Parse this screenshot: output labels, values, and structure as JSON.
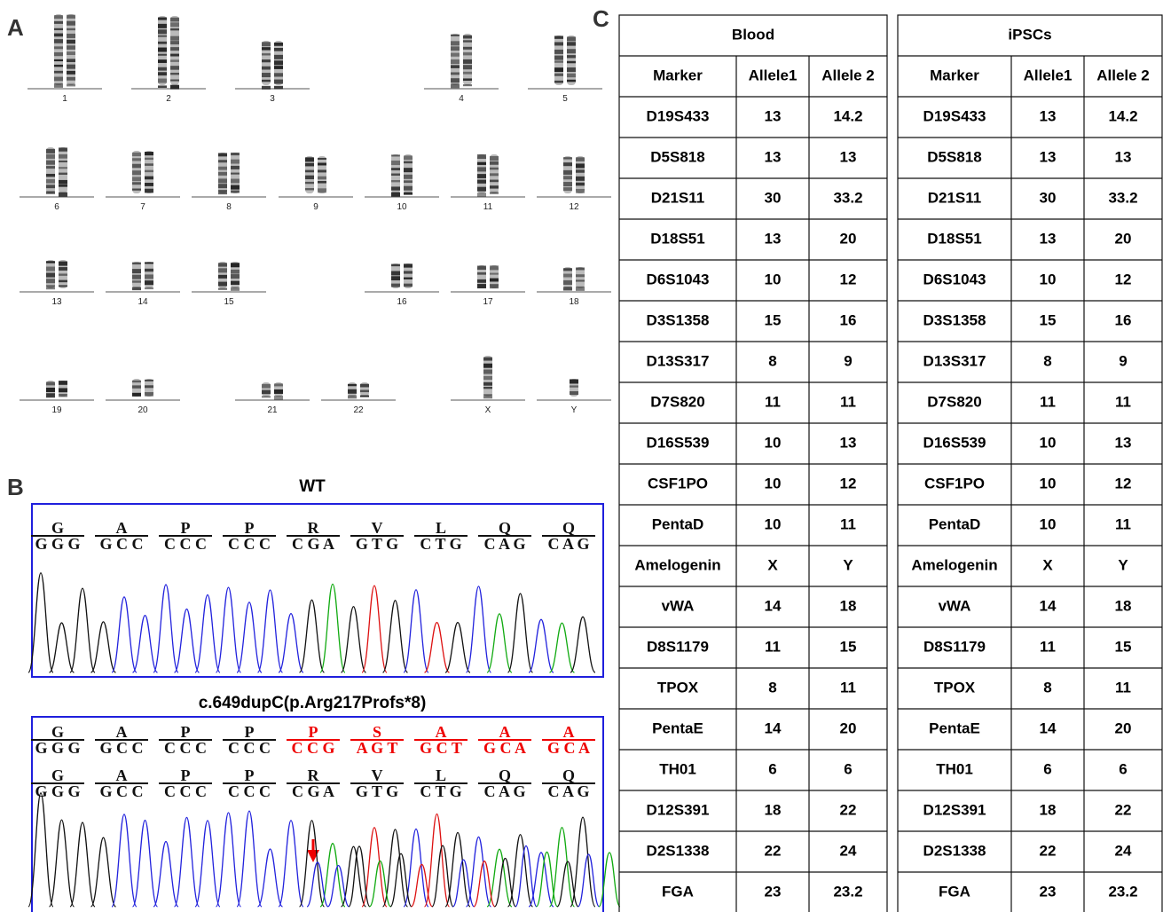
{
  "panels": {
    "a": "A",
    "b": "B",
    "c": "C"
  },
  "karyotype": {
    "rows": [
      [
        "1",
        "2",
        "3",
        "4",
        "5"
      ],
      [
        "6",
        "7",
        "8",
        "9",
        "10",
        "11",
        "12"
      ],
      [
        "13",
        "14",
        "15",
        "16",
        "17",
        "18"
      ],
      [
        "19",
        "20",
        "21",
        "22",
        "X",
        "Y"
      ]
    ]
  },
  "sequencing": {
    "wt": {
      "title": "WT",
      "codons": [
        {
          "aa": "G",
          "bases": "G G G"
        },
        {
          "aa": "A",
          "bases": "G C C"
        },
        {
          "aa": "P",
          "bases": "C C C"
        },
        {
          "aa": "P",
          "bases": "C C C"
        },
        {
          "aa": "R",
          "bases": "C G A"
        },
        {
          "aa": "V",
          "bases": "G T G"
        },
        {
          "aa": "L",
          "bases": "C T G"
        },
        {
          "aa": "Q",
          "bases": "C A G"
        },
        {
          "aa": "Q",
          "bases": "C A G"
        }
      ]
    },
    "mutant": {
      "title": "c.649dupC(p.Arg217Profs*8)",
      "rows": [
        [
          {
            "aa": "G",
            "bases": "G G G"
          },
          {
            "aa": "A",
            "bases": "G C C"
          },
          {
            "aa": "P",
            "bases": "C C C"
          },
          {
            "aa": "P",
            "bases": "C C C"
          },
          {
            "aa": "P",
            "bases": "C C G"
          },
          {
            "aa": "S",
            "bases": "A G T"
          },
          {
            "aa": "A",
            "bases": "G C T"
          },
          {
            "aa": "A",
            "bases": "G C A"
          },
          {
            "aa": "A",
            "bases": "G C A"
          }
        ],
        [
          {
            "aa": "G",
            "bases": "G G G"
          },
          {
            "aa": "A",
            "bases": "G C C"
          },
          {
            "aa": "P",
            "bases": "C C C"
          },
          {
            "aa": "P",
            "bases": "C C C"
          },
          {
            "aa": "R",
            "bases": "C G A"
          },
          {
            "aa": "V",
            "bases": "G T G"
          },
          {
            "aa": "L",
            "bases": "C T G"
          },
          {
            "aa": "Q",
            "bases": "C A G"
          },
          {
            "aa": "Q",
            "bases": "C A G"
          }
        ]
      ]
    }
  },
  "str_table": {
    "blood": {
      "title": "Blood",
      "headers": [
        "Marker",
        "Allele1",
        "Allele 2"
      ],
      "rows": [
        [
          "D19S433",
          "13",
          "14.2"
        ],
        [
          "D5S818",
          "13",
          "13"
        ],
        [
          "D21S11",
          "30",
          "33.2"
        ],
        [
          "D18S51",
          "13",
          "20"
        ],
        [
          "D6S1043",
          "10",
          "12"
        ],
        [
          "D3S1358",
          "15",
          "16"
        ],
        [
          "D13S317",
          "8",
          "9"
        ],
        [
          "D7S820",
          "11",
          "11"
        ],
        [
          "D16S539",
          "10",
          "13"
        ],
        [
          "CSF1PO",
          "10",
          "12"
        ],
        [
          "PentaD",
          "10",
          "11"
        ],
        [
          "Amelogenin",
          "X",
          "Y"
        ],
        [
          "vWA",
          "14",
          "18"
        ],
        [
          "D8S1179",
          "11",
          "15"
        ],
        [
          "TPOX",
          "8",
          "11"
        ],
        [
          "PentaE",
          "14",
          "20"
        ],
        [
          "TH01",
          "6",
          "6"
        ],
        [
          "D12S391",
          "18",
          "22"
        ],
        [
          "D2S1338",
          "22",
          "24"
        ],
        [
          "FGA",
          "23",
          "23.2"
        ]
      ]
    },
    "ipscs": {
      "title": "iPSCs",
      "headers": [
        "Marker",
        "Allele1",
        "Allele 2"
      ],
      "rows": [
        [
          "D19S433",
          "13",
          "14.2"
        ],
        [
          "D5S818",
          "13",
          "13"
        ],
        [
          "D21S11",
          "30",
          "33.2"
        ],
        [
          "D18S51",
          "13",
          "20"
        ],
        [
          "D6S1043",
          "10",
          "12"
        ],
        [
          "D3S1358",
          "15",
          "16"
        ],
        [
          "D13S317",
          "8",
          "9"
        ],
        [
          "D7S820",
          "11",
          "11"
        ],
        [
          "D16S539",
          "10",
          "13"
        ],
        [
          "CSF1PO",
          "10",
          "12"
        ],
        [
          "PentaD",
          "10",
          "11"
        ],
        [
          "Amelogenin",
          "X",
          "Y"
        ],
        [
          "vWA",
          "14",
          "18"
        ],
        [
          "D8S1179",
          "11",
          "15"
        ],
        [
          "TPOX",
          "8",
          "11"
        ],
        [
          "PentaE",
          "14",
          "20"
        ],
        [
          "TH01",
          "6",
          "6"
        ],
        [
          "D12S391",
          "18",
          "22"
        ],
        [
          "D2S1338",
          "22",
          "24"
        ],
        [
          "FGA",
          "23",
          "23.2"
        ]
      ]
    }
  }
}
